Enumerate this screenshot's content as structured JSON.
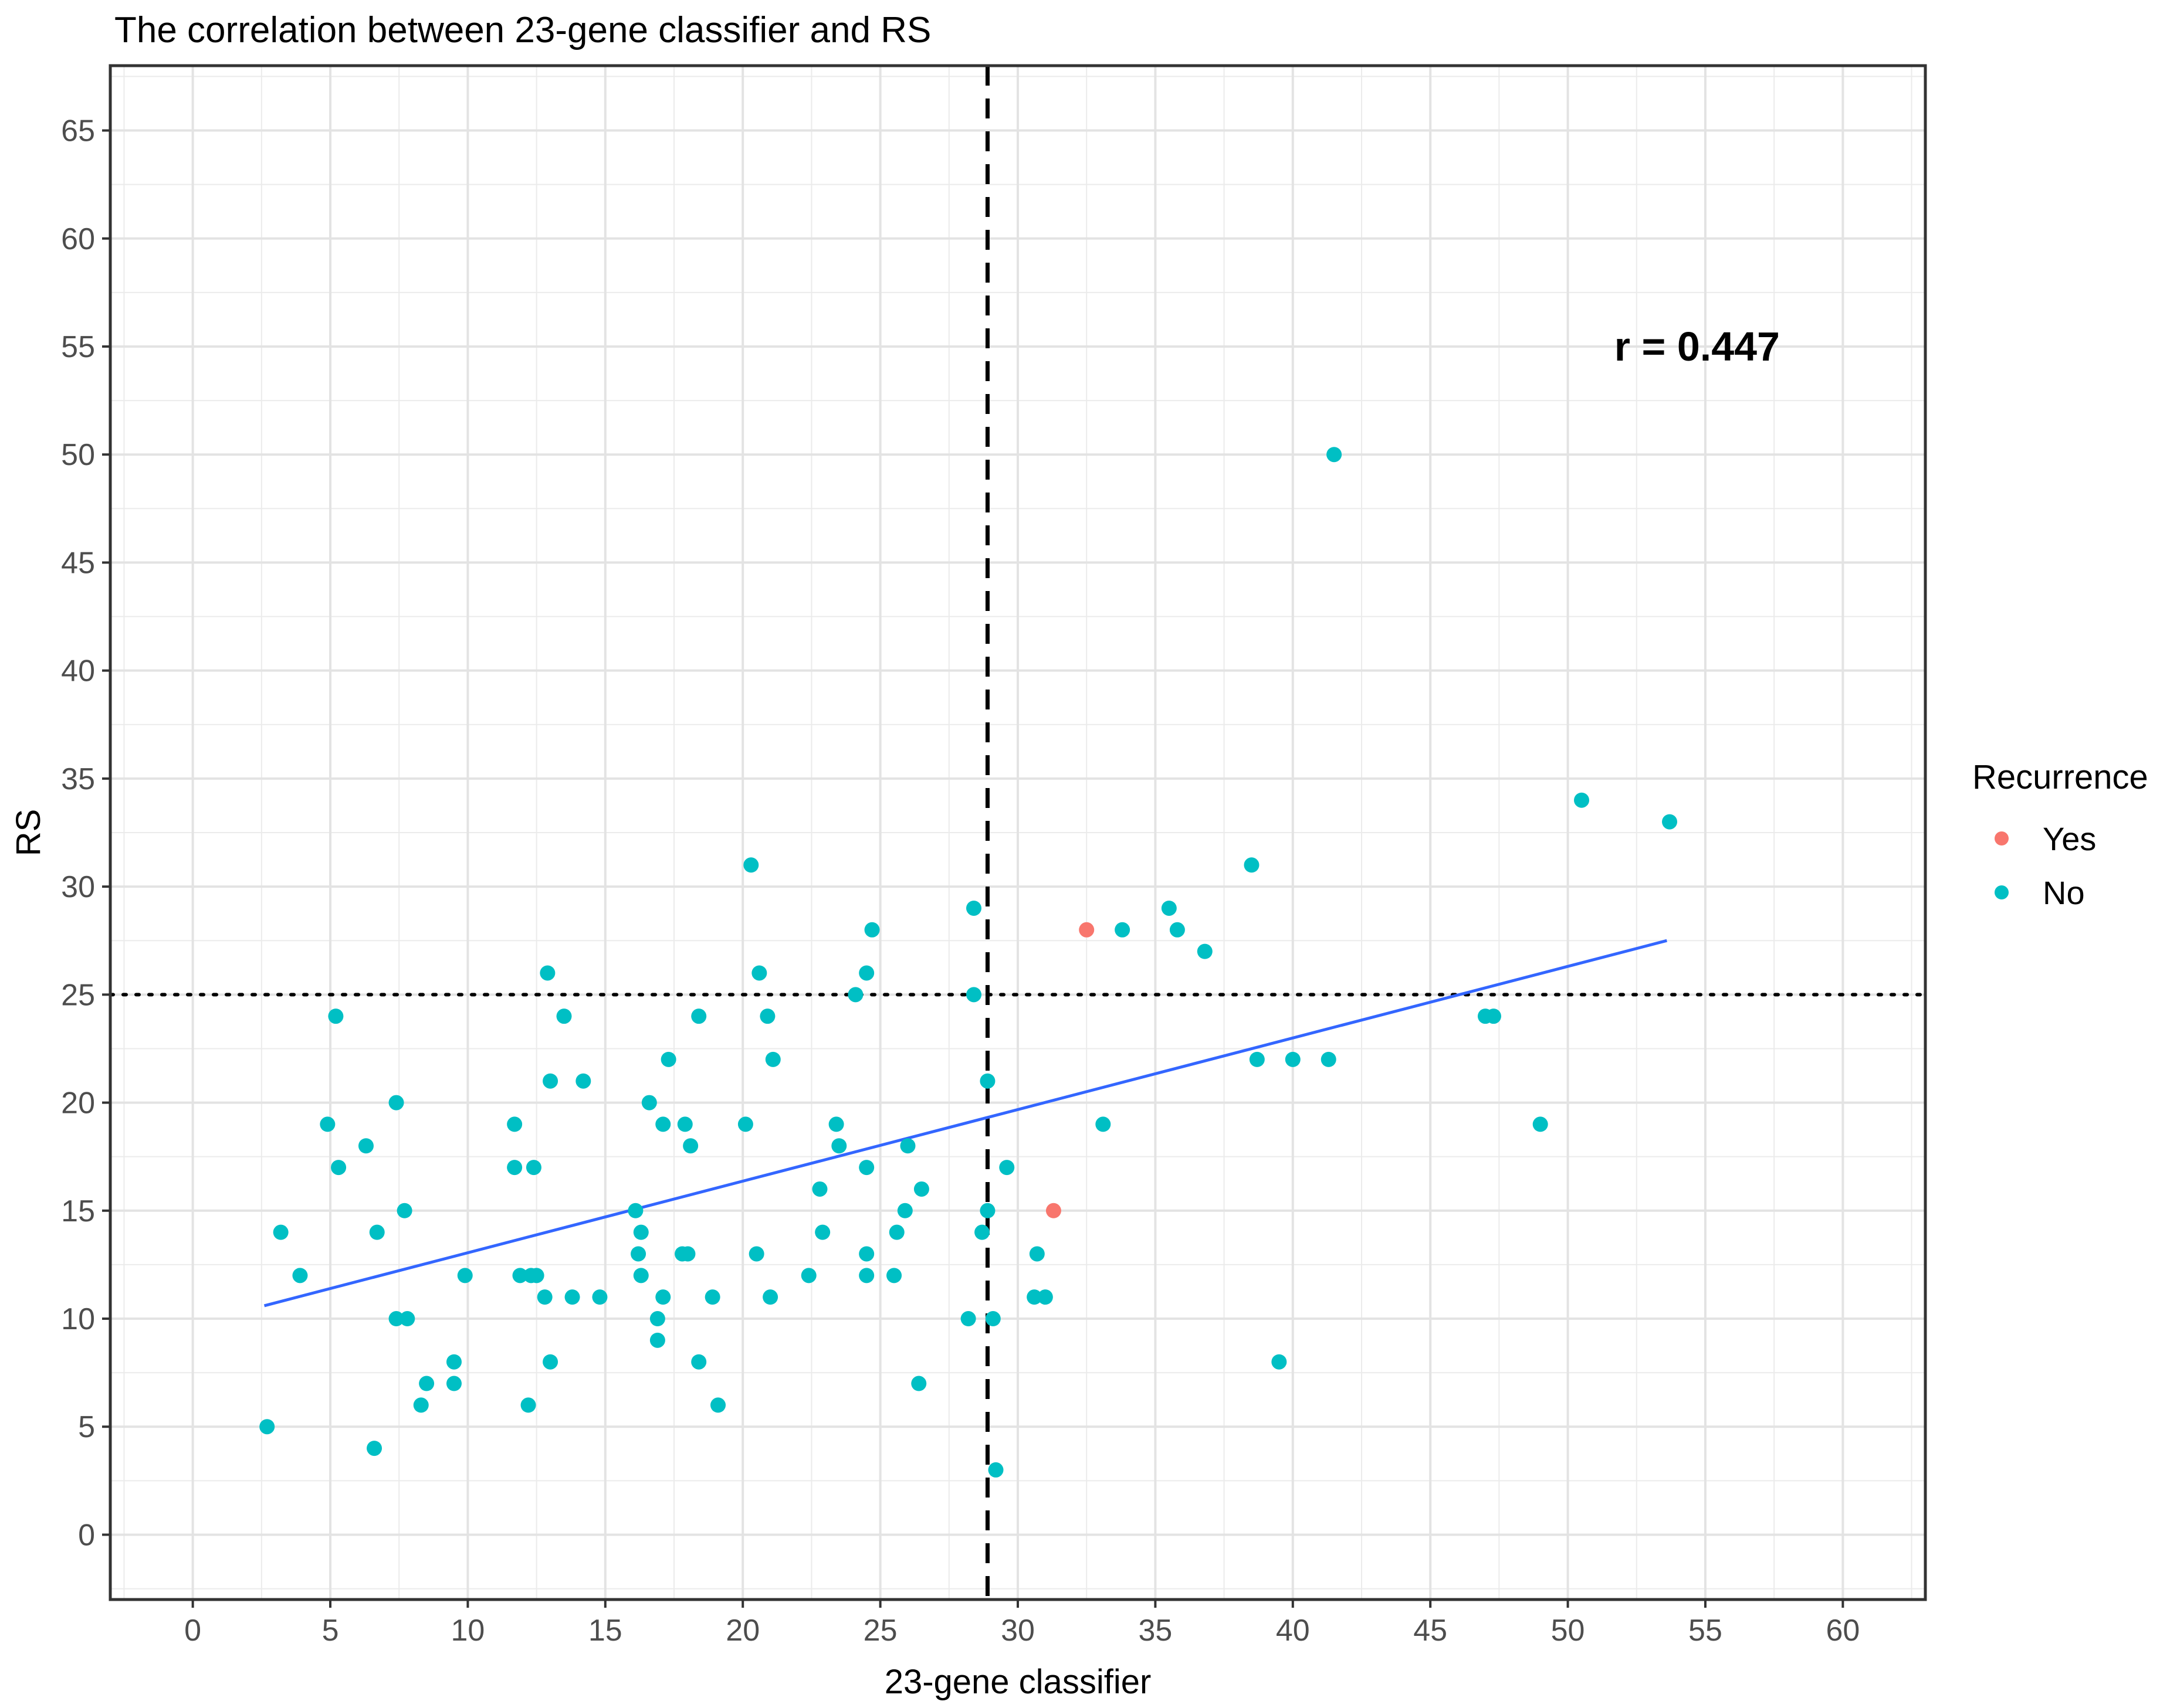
{
  "chart_data": {
    "type": "scatter",
    "title": "The correlation between 23-gene classifier and RS",
    "xlabel": "23-gene classifier",
    "ylabel": "RS",
    "xlim": [
      -3,
      63
    ],
    "ylim": [
      -3,
      68
    ],
    "x_ticks": [
      0,
      5,
      10,
      15,
      20,
      25,
      30,
      35,
      40,
      45,
      50,
      55,
      60
    ],
    "y_ticks": [
      0,
      5,
      10,
      15,
      20,
      25,
      30,
      35,
      40,
      45,
      50,
      55,
      60,
      65
    ],
    "grid": true,
    "legend": {
      "title": "Recurrence",
      "position": "right"
    },
    "annotation": "r = 0.447",
    "colors": {
      "Yes": "#F8766D",
      "No": "#00BFC4",
      "fit": "#3366FF"
    },
    "reference_lines": {
      "vertical_x": 28.9,
      "horizontal_y": 25
    },
    "fit_line": {
      "x": [
        2.6,
        53.6
      ],
      "y": [
        10.6,
        27.5
      ]
    },
    "series": [
      {
        "name": "Yes",
        "points": [
          [
            32.5,
            28
          ],
          [
            31.3,
            15
          ]
        ]
      },
      {
        "name": "No",
        "points": [
          [
            2.7,
            5
          ],
          [
            3.2,
            14
          ],
          [
            3.9,
            12
          ],
          [
            4.9,
            19
          ],
          [
            5.2,
            24
          ],
          [
            5.3,
            17
          ],
          [
            6.3,
            18
          ],
          [
            6.6,
            4
          ],
          [
            6.7,
            14
          ],
          [
            7.4,
            20
          ],
          [
            7.4,
            10
          ],
          [
            7.7,
            15
          ],
          [
            7.8,
            10
          ],
          [
            8.3,
            6
          ],
          [
            8.5,
            7
          ],
          [
            9.5,
            7
          ],
          [
            9.5,
            8
          ],
          [
            9.9,
            12
          ],
          [
            11.7,
            19
          ],
          [
            11.7,
            17
          ],
          [
            11.9,
            12
          ],
          [
            12.2,
            6
          ],
          [
            12.3,
            12
          ],
          [
            12.4,
            17
          ],
          [
            12.5,
            12
          ],
          [
            12.8,
            11
          ],
          [
            12.9,
            26
          ],
          [
            13.0,
            21
          ],
          [
            13.0,
            8
          ],
          [
            13.5,
            24
          ],
          [
            13.8,
            11
          ],
          [
            14.2,
            21
          ],
          [
            14.8,
            11
          ],
          [
            16.1,
            15
          ],
          [
            16.2,
            13
          ],
          [
            16.3,
            14
          ],
          [
            16.3,
            12
          ],
          [
            16.6,
            20
          ],
          [
            16.9,
            9
          ],
          [
            16.9,
            10
          ],
          [
            17.1,
            11
          ],
          [
            17.1,
            19
          ],
          [
            17.3,
            22
          ],
          [
            17.8,
            13
          ],
          [
            17.9,
            19
          ],
          [
            18.0,
            13
          ],
          [
            18.1,
            18
          ],
          [
            18.4,
            24
          ],
          [
            18.4,
            8
          ],
          [
            18.9,
            11
          ],
          [
            19.1,
            6
          ],
          [
            20.1,
            19
          ],
          [
            20.3,
            31
          ],
          [
            20.5,
            13
          ],
          [
            20.6,
            26
          ],
          [
            20.9,
            24
          ],
          [
            21.0,
            11
          ],
          [
            21.1,
            22
          ],
          [
            22.4,
            12
          ],
          [
            22.8,
            16
          ],
          [
            22.9,
            14
          ],
          [
            23.4,
            19
          ],
          [
            23.5,
            18
          ],
          [
            24.1,
            25
          ],
          [
            24.5,
            26
          ],
          [
            24.5,
            17
          ],
          [
            24.5,
            13
          ],
          [
            24.5,
            12
          ],
          [
            24.7,
            28
          ],
          [
            25.5,
            12
          ],
          [
            25.6,
            14
          ],
          [
            25.9,
            15
          ],
          [
            26.0,
            18
          ],
          [
            26.4,
            7
          ],
          [
            26.5,
            16
          ],
          [
            28.2,
            10
          ],
          [
            28.4,
            29
          ],
          [
            28.4,
            25
          ],
          [
            28.7,
            14
          ],
          [
            28.9,
            15
          ],
          [
            28.9,
            21
          ],
          [
            29.1,
            10
          ],
          [
            29.2,
            3
          ],
          [
            29.6,
            17
          ],
          [
            30.6,
            11
          ],
          [
            30.7,
            13
          ],
          [
            31.0,
            11
          ],
          [
            33.1,
            19
          ],
          [
            33.8,
            28
          ],
          [
            35.5,
            29
          ],
          [
            35.8,
            28
          ],
          [
            36.8,
            27
          ],
          [
            38.5,
            31
          ],
          [
            38.7,
            22
          ],
          [
            39.5,
            8
          ],
          [
            40.0,
            22
          ],
          [
            41.3,
            22
          ],
          [
            41.5,
            50
          ],
          [
            47.0,
            24
          ],
          [
            47.3,
            24
          ],
          [
            49.0,
            19
          ],
          [
            50.5,
            34
          ],
          [
            53.7,
            33
          ]
        ]
      }
    ]
  }
}
